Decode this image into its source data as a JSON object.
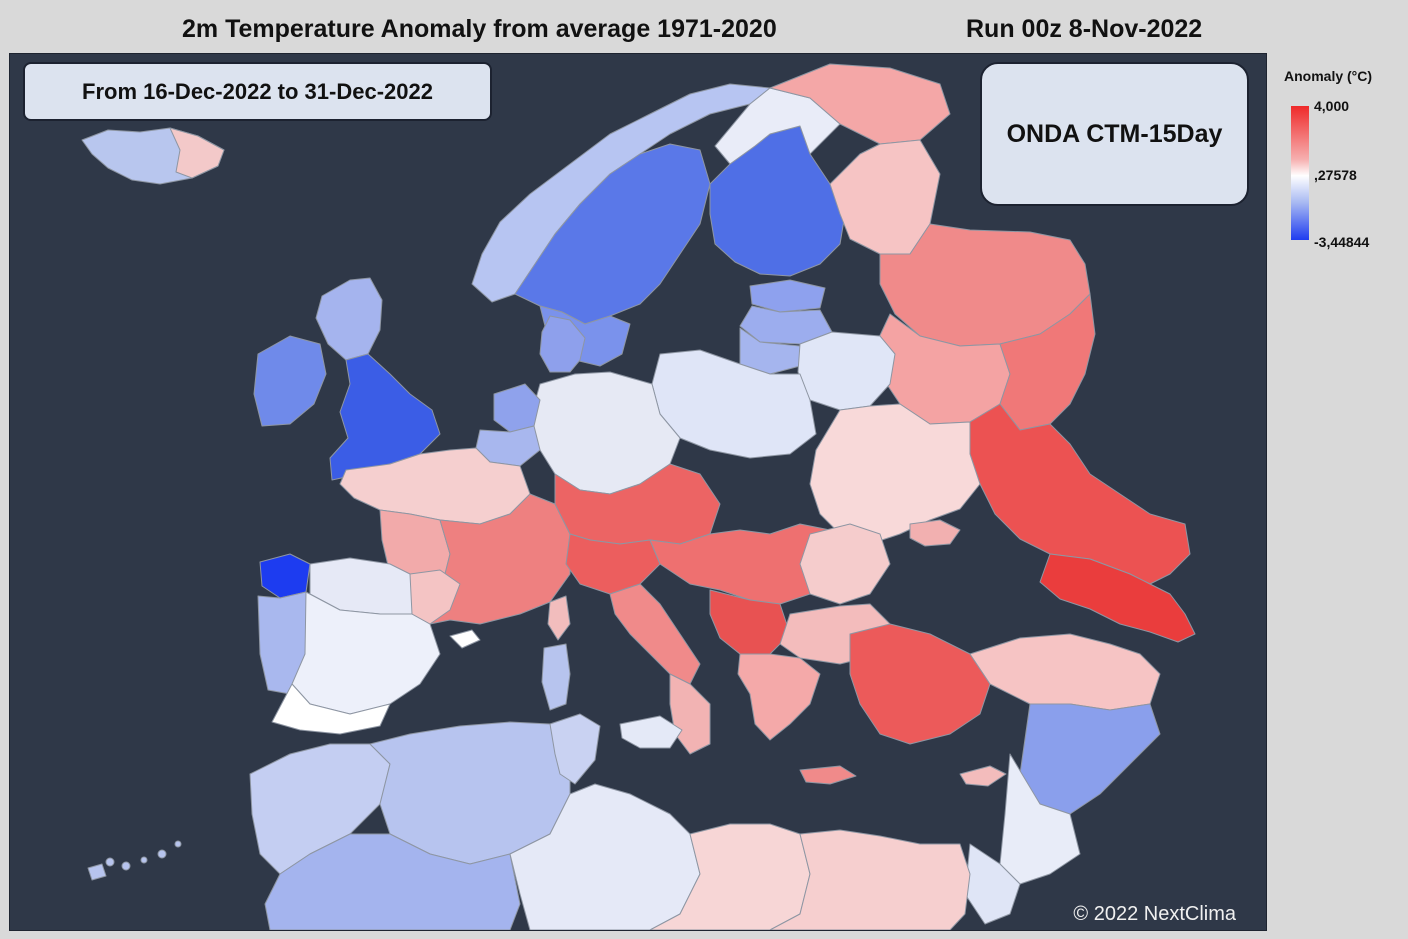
{
  "header": {
    "title": "2m Temperature Anomaly from average 1971-2020",
    "run": "Run 00z 8-Nov-2022"
  },
  "map": {
    "period": "From 16-Dec-2022 to 31-Dec-2022",
    "model": "ONDA CTM-15Day",
    "copyright": "© 2022 NextClima",
    "background_color": "#2f3848",
    "border_color": "#9aa0aa"
  },
  "legend": {
    "title": "Anomaly (°C)",
    "max_label": "4,000",
    "mid_label": ",27578",
    "min_label": "-3,44844",
    "max_color": "#ef2a2a",
    "mid_color": "#ffffff",
    "min_color": "#1e3cf0"
  }
}
